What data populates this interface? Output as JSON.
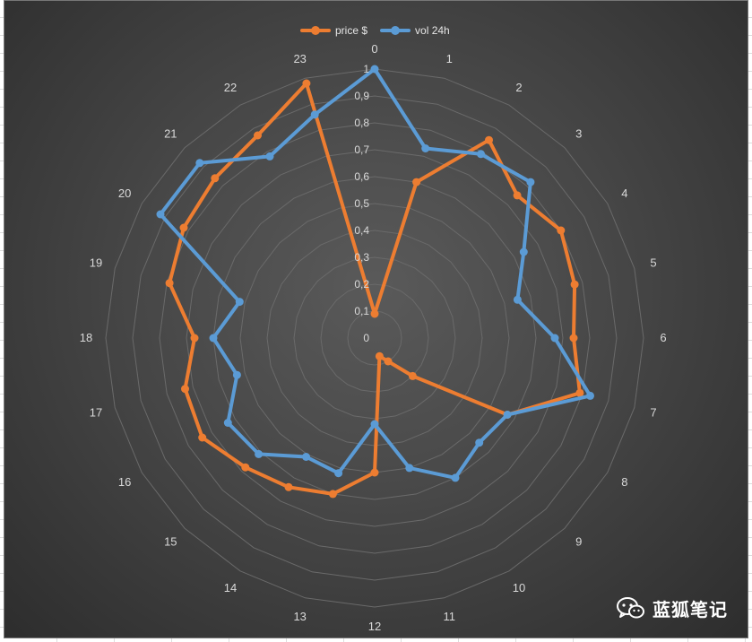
{
  "chart_data": {
    "type": "radar",
    "categories": [
      "0",
      "1",
      "2",
      "3",
      "4",
      "5",
      "6",
      "7",
      "8",
      "9",
      "10",
      "11",
      "12",
      "13",
      "14",
      "15",
      "16",
      "17",
      "18",
      "19",
      "20",
      "21",
      "22",
      "23"
    ],
    "radial_ticks": [
      "0",
      "0,1",
      "0,2",
      "0,3",
      "0,4",
      "0,5",
      "0,6",
      "0,7",
      "0,8",
      "0,9",
      "1"
    ],
    "rlim": [
      0,
      1
    ],
    "grid": true,
    "legend_position": "top",
    "series": [
      {
        "name": "price $",
        "color": "#ED7D31",
        "values": [
          0.09,
          0.6,
          0.85,
          0.75,
          0.8,
          0.77,
          0.74,
          0.79,
          0.57,
          0.2,
          0.1,
          0.07,
          0.5,
          0.6,
          0.64,
          0.68,
          0.74,
          0.73,
          0.67,
          0.79,
          0.82,
          0.84,
          0.87,
          0.98
        ]
      },
      {
        "name": "vol 24h",
        "color": "#5B9BD5",
        "values": [
          1.0,
          0.73,
          0.79,
          0.82,
          0.64,
          0.55,
          0.67,
          0.83,
          0.57,
          0.55,
          0.6,
          0.5,
          0.32,
          0.52,
          0.51,
          0.61,
          0.63,
          0.53,
          0.6,
          0.52,
          0.92,
          0.92,
          0.78,
          0.86
        ]
      }
    ]
  },
  "legend": {
    "price_label": "price $",
    "vol_label": "vol 24h"
  },
  "watermark": {
    "text": "蓝狐笔记",
    "icon": "wechat-icon"
  }
}
